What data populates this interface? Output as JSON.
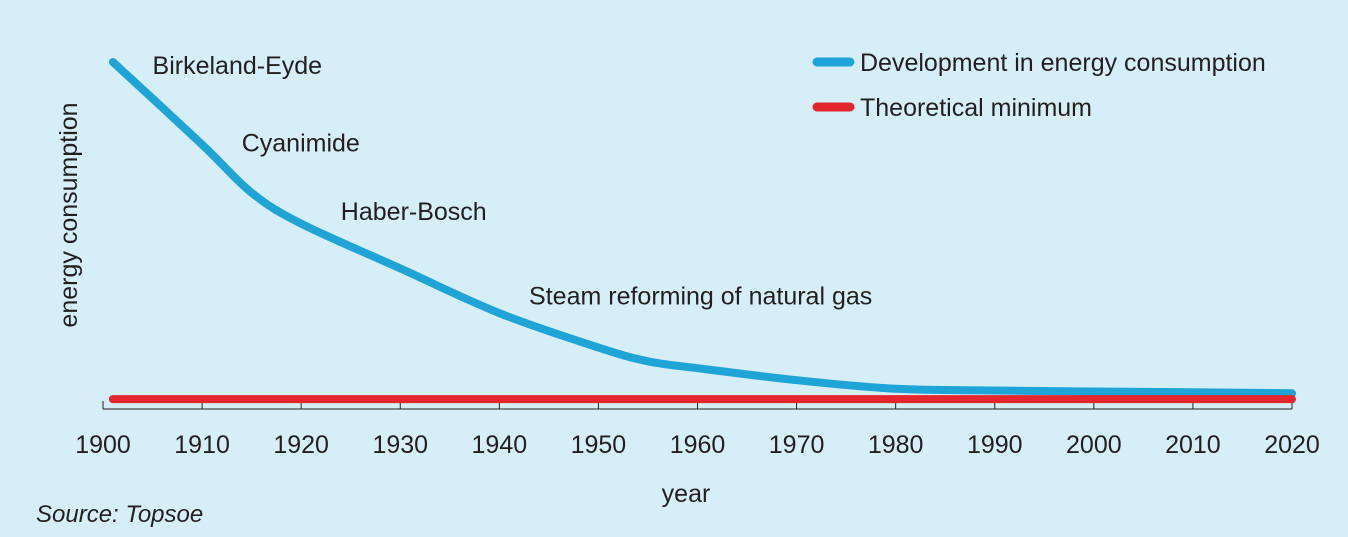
{
  "chart_data": {
    "type": "line",
    "ylabel": "energy consumption",
    "xlabel": "year",
    "xlim": [
      1900,
      2020
    ],
    "ylim": [
      0,
      100
    ],
    "x_ticks": [
      "1900",
      "1910",
      "1920",
      "1930",
      "1940",
      "1950",
      "1960",
      "1970",
      "1980",
      "1990",
      "2000",
      "2010",
      "2020"
    ],
    "grid": false,
    "legend_position": "top-right",
    "series": [
      {
        "name": "Development in energy consumption",
        "color": "#1fa4d8",
        "x": [
          1901,
          1910,
          1915,
          1920,
          1930,
          1940,
          1950,
          1955,
          1960,
          1970,
          1980,
          1990,
          2000,
          2010,
          2020
        ],
        "y": [
          100,
          76,
          62,
          53,
          40,
          27,
          17,
          13,
          11,
          7.5,
          5,
          4.5,
          4.2,
          4,
          3.7
        ]
      },
      {
        "name": "Theoretical minimum",
        "color": "#e4262e",
        "x": [
          1901,
          2020
        ],
        "y": [
          2,
          2
        ]
      }
    ],
    "annotations": [
      {
        "text": "Birkeland-Eyde",
        "x": 1905,
        "y": 96.5
      },
      {
        "text": "Cyanimide",
        "x": 1914,
        "y": 74
      },
      {
        "text": "Haber-Bosch",
        "x": 1924,
        "y": 54
      },
      {
        "text": "Steam reforming of natural gas",
        "x": 1943,
        "y": 29.5
      }
    ]
  },
  "source_note": "Source: Topsoe"
}
